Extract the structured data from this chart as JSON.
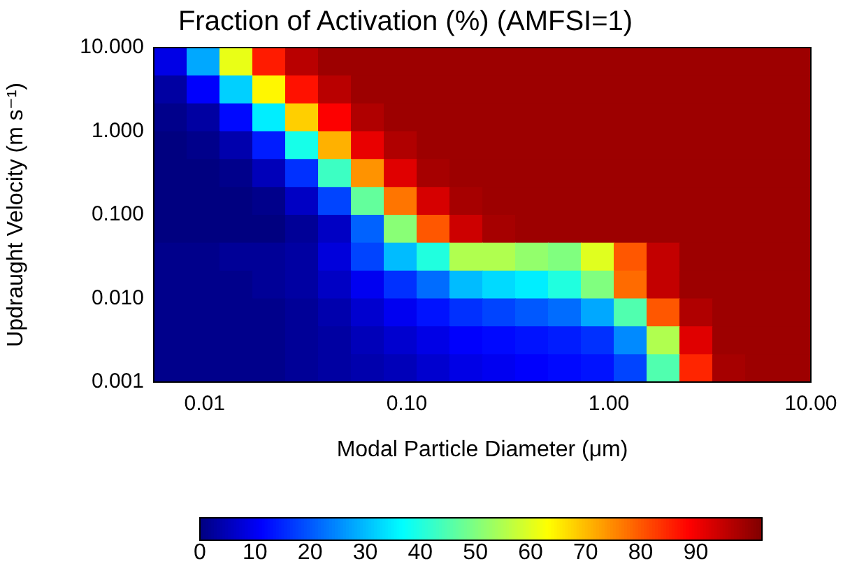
{
  "chart_data": {
    "type": "heatmap",
    "title": "Fraction of Activation (%) (AMFSI=1)",
    "xlabel": "Modal Particle Diameter (μm)",
    "ylabel": "Updraught Velocity (m s⁻¹)",
    "log": "xy",
    "xlim": [
      0.0056,
      10
    ],
    "ylim": [
      0.001,
      10
    ],
    "xticks": [
      {
        "value": 0.01,
        "label": "0.01"
      },
      {
        "value": 0.1,
        "label": "0.10"
      },
      {
        "value": 1,
        "label": "1.00"
      },
      {
        "value": 10,
        "label": "10.00"
      }
    ],
    "yticks": [
      {
        "value": 0.001,
        "label": "0.001"
      },
      {
        "value": 0.01,
        "label": "0.010"
      },
      {
        "value": 0.1,
        "label": "0.100"
      },
      {
        "value": 1,
        "label": "1.000"
      },
      {
        "value": 10,
        "label": "10.000"
      }
    ],
    "clim": [
      0,
      102
    ],
    "cticks": [
      0,
      10,
      20,
      30,
      40,
      50,
      60,
      70,
      80,
      90
    ],
    "cells": [
      [
        9,
        28,
        61,
        86,
        96,
        99,
        99,
        99,
        99,
        99,
        99,
        99,
        99,
        99,
        99,
        99,
        99,
        99,
        99,
        99
      ],
      [
        3,
        11,
        32,
        64,
        87,
        96,
        99,
        99,
        99,
        99,
        99,
        99,
        99,
        99,
        99,
        99,
        99,
        99,
        99,
        99
      ],
      [
        1,
        3,
        12,
        35,
        68,
        89,
        97,
        99,
        99,
        99,
        99,
        99,
        99,
        99,
        99,
        99,
        99,
        99,
        99,
        99
      ],
      [
        0,
        1,
        4,
        14,
        39,
        71,
        91,
        97,
        99,
        99,
        99,
        99,
        99,
        99,
        99,
        99,
        99,
        99,
        99,
        99
      ],
      [
        0,
        0,
        1,
        5,
        16,
        43,
        74,
        92,
        98,
        99,
        99,
        99,
        99,
        99,
        99,
        99,
        99,
        99,
        99,
        99
      ],
      [
        0,
        0,
        0,
        1,
        6,
        18,
        47,
        77,
        93,
        98,
        99,
        99,
        99,
        99,
        99,
        99,
        99,
        99,
        99,
        99
      ],
      [
        0,
        0,
        0,
        0,
        2,
        6,
        21,
        51,
        80,
        94,
        98,
        99,
        99,
        99,
        99,
        99,
        99,
        99,
        99,
        99
      ],
      [
        1,
        1,
        2,
        2,
        3,
        8,
        18,
        30,
        40,
        55,
        55,
        52,
        50,
        60,
        80,
        95,
        99,
        99,
        99,
        99
      ],
      [
        1,
        1,
        1,
        2,
        3,
        6,
        10,
        16,
        22,
        30,
        33,
        35,
        40,
        50,
        78,
        95,
        99,
        99,
        99,
        99
      ],
      [
        1,
        1,
        1,
        1,
        2,
        4,
        7,
        10,
        13,
        16,
        18,
        20,
        22,
        28,
        45,
        80,
        97,
        99,
        99,
        99
      ],
      [
        1,
        1,
        1,
        1,
        2,
        3,
        5,
        7,
        9,
        11,
        12,
        13,
        14,
        16,
        25,
        55,
        92,
        99,
        99,
        99
      ],
      [
        1,
        1,
        1,
        1,
        2,
        3,
        4,
        5,
        7,
        9,
        10,
        11,
        12,
        13,
        18,
        45,
        85,
        98,
        99,
        99
      ]
    ]
  }
}
